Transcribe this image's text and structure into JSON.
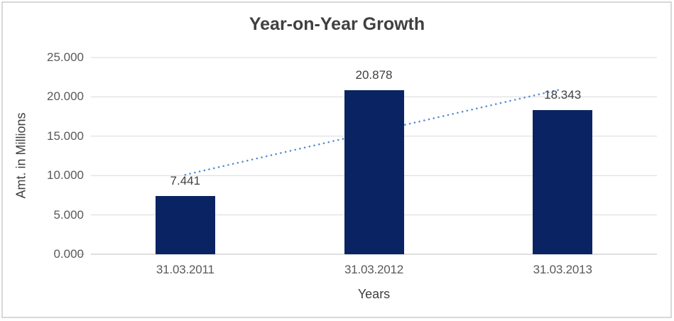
{
  "window": {
    "background": "#FFFFFF",
    "frame_border_color": "#D8D8D8"
  },
  "chart_data": {
    "type": "bar",
    "title": "Year-on-Year Growth",
    "xlabel": "Years",
    "ylabel": "Amt. in Millions",
    "categories": [
      "31.03.2011",
      "31.03.2012",
      "31.03.2013"
    ],
    "values": [
      7.441,
      20.878,
      18.343
    ],
    "data_labels": [
      "7.441",
      "20.878",
      "18.343"
    ],
    "ylim": [
      0,
      25
    ],
    "yticks": [
      {
        "value": 0,
        "label": "0.000"
      },
      {
        "value": 5,
        "label": "5.000"
      },
      {
        "value": 10,
        "label": "10.000"
      },
      {
        "value": 15,
        "label": "15.000"
      },
      {
        "value": 20,
        "label": "20.000"
      },
      {
        "value": 25,
        "label": "25.000"
      }
    ],
    "grid": true,
    "legend_position": "none",
    "trendline": {
      "type": "linear",
      "style": "dotted",
      "fit_start_value": 10.103,
      "fit_end_value": 21.005
    },
    "colors": {
      "bar": "#0A2463",
      "trendline": "#5288D0",
      "gridline": "#D9D9D9",
      "axis_line": "#BFBFBF",
      "title_text": "#404040",
      "tick_text": "#595959"
    }
  }
}
